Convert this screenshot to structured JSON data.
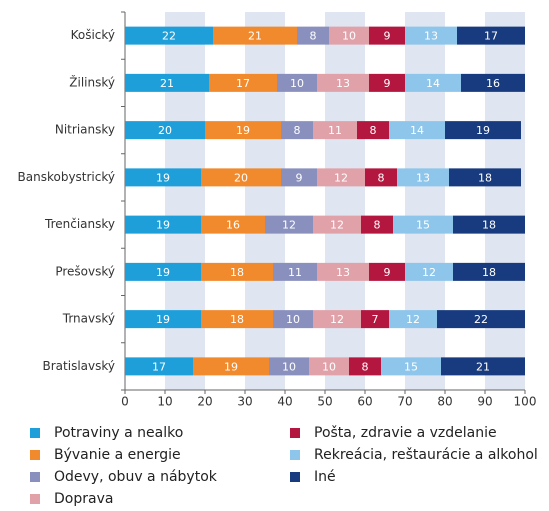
{
  "chart_data": {
    "type": "stacked_barh",
    "categories": [
      "Košický",
      "Žilinský",
      "Nitriansky",
      "Banskobystrický",
      "Trenčiansky",
      "Prešovský",
      "Trnavský",
      "Bratislavský"
    ],
    "series": [
      {
        "name": "Potraviny a nealko",
        "color": "#1e9fda",
        "values": [
          22,
          21,
          20,
          19,
          19,
          19,
          19,
          17
        ]
      },
      {
        "name": "Bývanie a energie",
        "color": "#f08a2c",
        "values": [
          21,
          17,
          19,
          20,
          16,
          18,
          18,
          19
        ]
      },
      {
        "name": "Odevy, obuv a nábytok",
        "color": "#8990bd",
        "values": [
          8,
          10,
          8,
          9,
          12,
          11,
          10,
          10
        ]
      },
      {
        "name": "Doprava",
        "color": "#e0a1a9",
        "values": [
          10,
          13,
          11,
          12,
          12,
          13,
          12,
          10
        ]
      },
      {
        "name": "Pošta, zdravie a vzdelanie",
        "color": "#b3163f",
        "values": [
          9,
          9,
          8,
          8,
          8,
          9,
          7,
          8
        ]
      },
      {
        "name": "Rekreácia, reštaurácie a alkohol",
        "color": "#8ec5ea",
        "values": [
          13,
          14,
          14,
          13,
          15,
          12,
          12,
          15
        ]
      },
      {
        "name": "Iné",
        "color": "#173b7e",
        "values": [
          17,
          16,
          19,
          18,
          18,
          18,
          22,
          21
        ]
      }
    ],
    "xlim": [
      0,
      100
    ],
    "xticks": [
      0,
      10,
      20,
      30,
      40,
      50,
      60,
      70,
      80,
      90,
      100
    ],
    "grid": "bands",
    "band_color": "#dfe5f1",
    "legend": "bottom"
  }
}
